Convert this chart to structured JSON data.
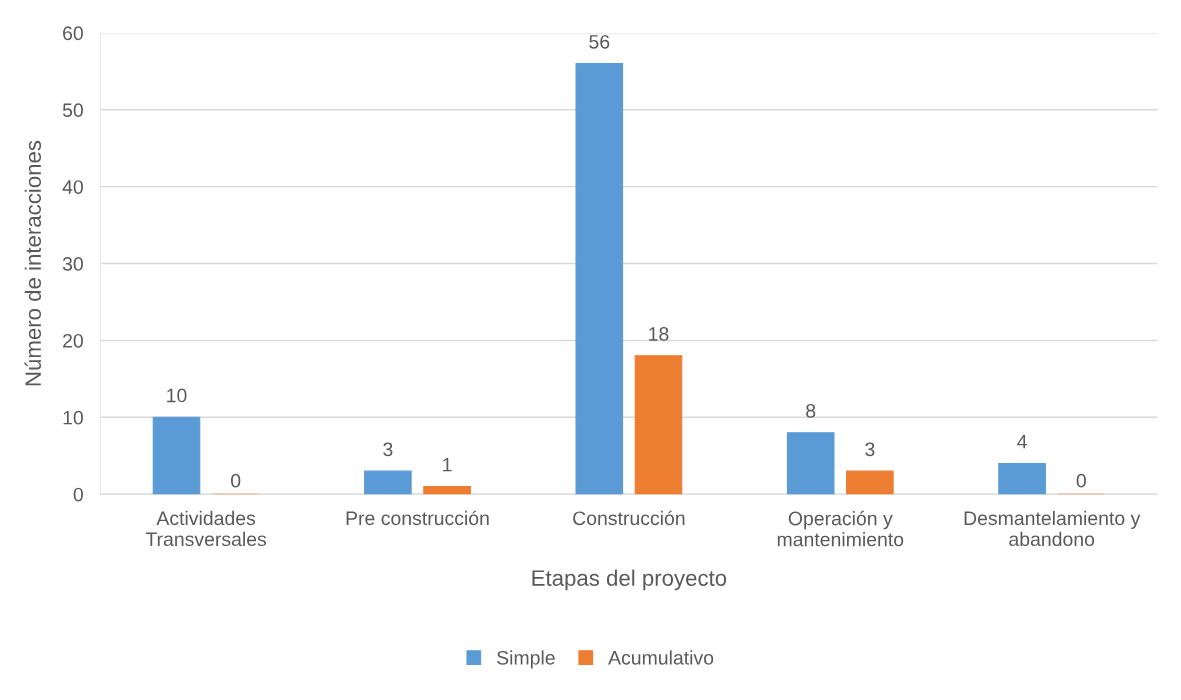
{
  "chart_data": {
    "type": "bar",
    "xlabel": "Etapas del proyecto",
    "ylabel": "Número de interacciones",
    "categories": [
      "Actividades\nTransversales",
      "Pre construcción",
      "Construcción",
      "Operación y\nmantenimiento",
      "Desmantelamiento y\nabandono"
    ],
    "series": [
      {
        "name": "Simple",
        "color": "#5b9bd5",
        "values": [
          10,
          3,
          56,
          8,
          4
        ]
      },
      {
        "name": "Acumulativo",
        "color": "#ed7d31",
        "values": [
          0,
          1,
          18,
          3,
          0
        ]
      }
    ],
    "ylim": [
      0,
      60
    ],
    "yticks": [
      0,
      10,
      20,
      30,
      40,
      50,
      60
    ],
    "grid": "y",
    "legend": "bottom",
    "data_labels": true
  }
}
